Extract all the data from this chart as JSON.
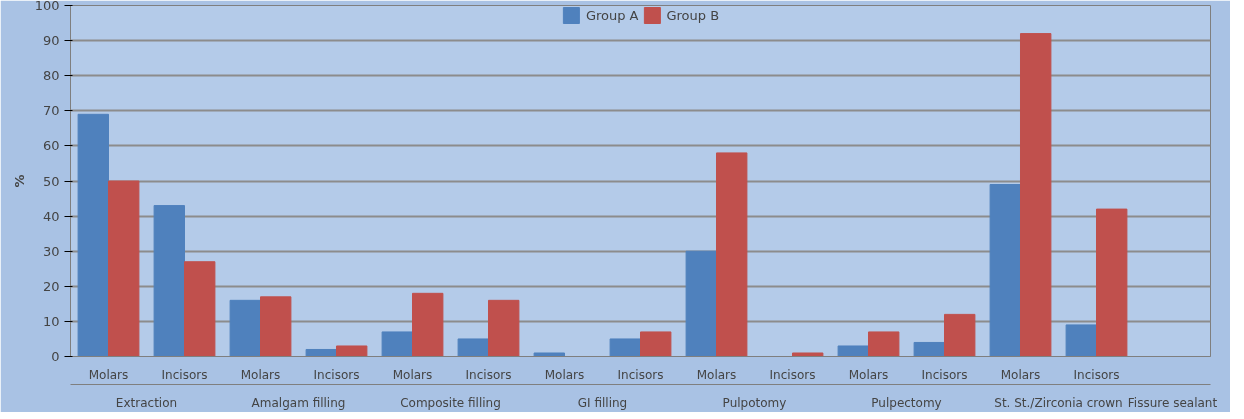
{
  "chart_data": {
    "type": "bar",
    "ylabel": "%",
    "categories": [
      "Molars",
      "Incisors",
      "Molars",
      "Incisors",
      "Molars",
      "Incisors",
      "Molars",
      "Incisors",
      "Molars",
      "Incisors",
      "Molars",
      "Incisors",
      "Molars",
      "Incisors",
      null
    ],
    "annotations": [
      "Extraction",
      "Amalgam filling",
      "Composite filling",
      "GI filling",
      "Pulpotomy",
      "Pulpectomy",
      "St. St./Zirconia crown",
      "Fissure sealant"
    ],
    "series": [
      {
        "name": "Group A",
        "color": "#4f81bd",
        "values": [
          69,
          43,
          16,
          2,
          7,
          5,
          1,
          5,
          30,
          0,
          3,
          4,
          49,
          9,
          0
        ]
      },
      {
        "name": "Group B",
        "color": "#c0504d",
        "values": [
          50,
          27,
          17,
          3,
          18,
          16,
          0,
          7,
          58,
          1,
          7,
          12,
          92,
          42,
          0
        ]
      }
    ],
    "ylim": [
      0,
      100
    ],
    "yticks": [
      0,
      10,
      20,
      30,
      40,
      50,
      60,
      70,
      80,
      90,
      100
    ],
    "grid": "y",
    "legend": "top"
  }
}
